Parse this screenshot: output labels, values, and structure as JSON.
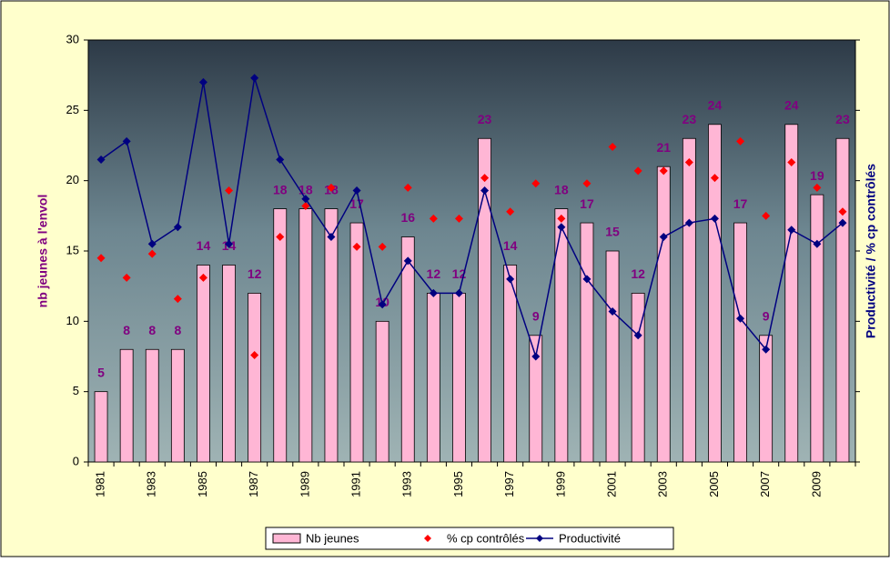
{
  "chart_data": {
    "type": "combo",
    "y_label": "nb jeunes à l'envol",
    "y2_label": "Productivité / % cp contrôlés",
    "categories": [
      "1981",
      null,
      "1983",
      null,
      "1985",
      null,
      "1987",
      null,
      "1989",
      null,
      "1991",
      null,
      "1993",
      null,
      "1995",
      null,
      "1997",
      null,
      "1999",
      null,
      "2001",
      null,
      "2003",
      null,
      "2005",
      null,
      "2007",
      null,
      "2009",
      null
    ],
    "series": [
      {
        "name": "Nb jeunes",
        "type": "bar",
        "color": "#ffb6d5",
        "data_labels": true,
        "values": [
          5,
          8,
          8,
          8,
          14,
          14,
          12,
          18,
          18,
          18,
          17,
          10,
          16,
          12,
          12,
          23,
          14,
          9,
          18,
          17,
          15,
          12,
          21,
          23,
          24,
          17,
          9,
          24,
          19,
          23
        ]
      },
      {
        "name": "% cp contrôlés",
        "type": "scatter",
        "color": "#ff0000",
        "values": [
          14.5,
          13.1,
          14.8,
          11.6,
          13.1,
          19.3,
          7.6,
          16.0,
          18.2,
          19.5,
          15.3,
          15.3,
          19.5,
          17.3,
          17.3,
          20.2,
          17.8,
          19.8,
          17.3,
          19.8,
          22.4,
          20.7,
          20.7,
          21.3,
          20.2,
          22.8,
          17.5,
          21.3,
          19.5,
          17.8
        ]
      },
      {
        "name": "Productivité",
        "type": "line",
        "color": "#000080",
        "values": [
          21.5,
          22.8,
          15.5,
          16.7,
          27.0,
          15.5,
          27.3,
          21.5,
          18.7,
          16.0,
          19.3,
          11.2,
          14.3,
          12.0,
          12.0,
          19.3,
          13.0,
          7.5,
          16.7,
          13.0,
          10.7,
          9.0,
          16.0,
          17.0,
          17.3,
          10.2,
          8.0,
          16.5,
          15.5,
          17.0
        ]
      }
    ],
    "ylim": [
      0,
      30
    ],
    "yticks": [
      0,
      5,
      10,
      15,
      20,
      25,
      30
    ],
    "legend": "bottom"
  }
}
